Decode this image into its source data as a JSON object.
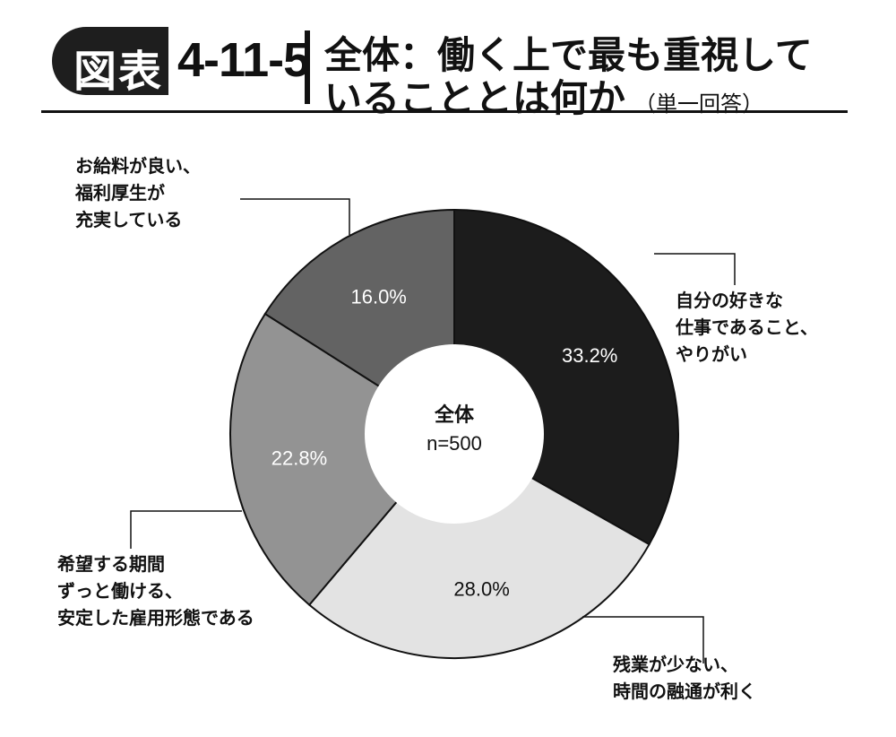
{
  "header": {
    "badge": "図表",
    "figure_number": "4-11-5",
    "title_line1": "全体：働く上で最も重視して",
    "title_line2": "いることとは何か",
    "title_note": "（単一回答）"
  },
  "chart_data": {
    "type": "pie",
    "donut": true,
    "center_label": "全体",
    "center_sublabel": "n=500",
    "unit": "%",
    "slices": [
      {
        "label": "自分の好きな仕事であること、やりがい",
        "label_lines": [
          "自分の好きな",
          "仕事であること、",
          "やりがい"
        ],
        "value": 33.2,
        "display": "33.2%",
        "color": "#1c1c1c",
        "text_color": "#ffffff"
      },
      {
        "label": "残業が少ない、時間の融通が利く",
        "label_lines": [
          "残業が少ない、",
          "時間の融通が利く"
        ],
        "value": 28.0,
        "display": "28.0%",
        "color": "#e3e3e3",
        "text_color": "#111111"
      },
      {
        "label": "希望する期間ずっと働ける、安定した雇用形態である",
        "label_lines": [
          "希望する期間",
          "ずっと働ける、",
          "安定した雇用形態である"
        ],
        "value": 22.8,
        "display": "22.8%",
        "color": "#939393",
        "text_color": "#ffffff"
      },
      {
        "label": "お給料が良い、福利厚生が充実している",
        "label_lines": [
          "お給料が良い、",
          "福利厚生が",
          "充実している"
        ],
        "value": 16.0,
        "display": "16.0%",
        "color": "#636363",
        "text_color": "#ffffff"
      }
    ]
  }
}
